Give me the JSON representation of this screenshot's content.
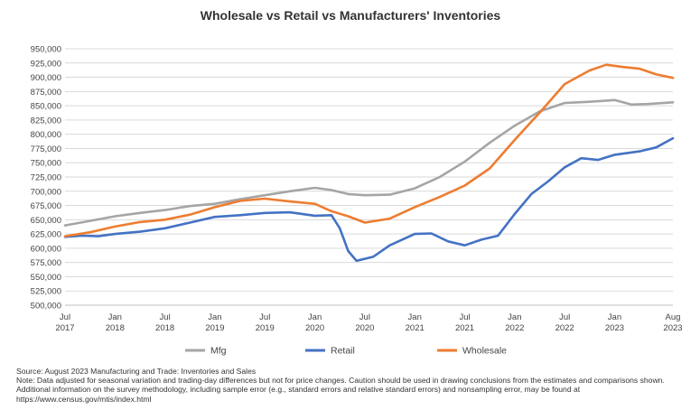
{
  "chart_data": {
    "type": "line",
    "title": "Wholesale vs Retail vs Manufacturers' Inventories",
    "y_range": [
      500000,
      950000
    ],
    "y_ticks": [
      "500,000",
      "525,000",
      "550,000",
      "575,000",
      "600,000",
      "625,000",
      "650,000",
      "675,000",
      "700,000",
      "725,000",
      "750,000",
      "775,000",
      "800,000",
      "825,000",
      "850,000",
      "875,000",
      "900,000",
      "925,000",
      "950,000"
    ],
    "x_range_months": [
      "2017-07",
      "2023-08"
    ],
    "x_ticks": [
      {
        "month": "Jul",
        "year": "2017",
        "date": "2017-07"
      },
      {
        "month": "Jan",
        "year": "2018",
        "date": "2018-01"
      },
      {
        "month": "Jul",
        "year": "2018",
        "date": "2018-07"
      },
      {
        "month": "Jan",
        "year": "2019",
        "date": "2019-01"
      },
      {
        "month": "Jul",
        "year": "2019",
        "date": "2019-07"
      },
      {
        "month": "Jan",
        "year": "2020",
        "date": "2020-01"
      },
      {
        "month": "Jul",
        "year": "2020",
        "date": "2020-07"
      },
      {
        "month": "Jan",
        "year": "2021",
        "date": "2021-01"
      },
      {
        "month": "Jul",
        "year": "2021",
        "date": "2021-07"
      },
      {
        "month": "Jan",
        "year": "2022",
        "date": "2022-01"
      },
      {
        "month": "Jul",
        "year": "2022",
        "date": "2022-07"
      },
      {
        "month": "Jan",
        "year": "2023",
        "date": "2023-01"
      },
      {
        "month": "Aug",
        "year": "2023",
        "date": "2023-08"
      }
    ],
    "grid": "horizontal",
    "legend_position": "bottom",
    "series": [
      {
        "name": "Mfg",
        "color": "#a5a5a5",
        "points": [
          [
            "2017-07",
            640000
          ],
          [
            "2017-10",
            648000
          ],
          [
            "2018-01",
            656000
          ],
          [
            "2018-04",
            662000
          ],
          [
            "2018-07",
            667000
          ],
          [
            "2018-10",
            674000
          ],
          [
            "2019-01",
            678000
          ],
          [
            "2019-04",
            686000
          ],
          [
            "2019-07",
            693000
          ],
          [
            "2019-10",
            700000
          ],
          [
            "2020-01",
            706000
          ],
          [
            "2020-03",
            702000
          ],
          [
            "2020-05",
            695000
          ],
          [
            "2020-07",
            693000
          ],
          [
            "2020-10",
            694000
          ],
          [
            "2021-01",
            705000
          ],
          [
            "2021-04",
            725000
          ],
          [
            "2021-07",
            752000
          ],
          [
            "2021-10",
            785000
          ],
          [
            "2022-01",
            815000
          ],
          [
            "2022-04",
            840000
          ],
          [
            "2022-07",
            855000
          ],
          [
            "2022-10",
            857000
          ],
          [
            "2023-01",
            860000
          ],
          [
            "2023-03",
            852000
          ],
          [
            "2023-05",
            853000
          ],
          [
            "2023-08",
            856000
          ]
        ]
      },
      {
        "name": "Retail",
        "color": "#4472c4",
        "points": [
          [
            "2017-07",
            620000
          ],
          [
            "2017-09",
            622000
          ],
          [
            "2017-11",
            621000
          ],
          [
            "2018-01",
            625000
          ],
          [
            "2018-04",
            629000
          ],
          [
            "2018-07",
            635000
          ],
          [
            "2018-10",
            645000
          ],
          [
            "2019-01",
            655000
          ],
          [
            "2019-04",
            658000
          ],
          [
            "2019-07",
            662000
          ],
          [
            "2019-10",
            663000
          ],
          [
            "2020-01",
            657000
          ],
          [
            "2020-03",
            658000
          ],
          [
            "2020-04",
            635000
          ],
          [
            "2020-05",
            595000
          ],
          [
            "2020-06",
            578000
          ],
          [
            "2020-08",
            585000
          ],
          [
            "2020-10",
            605000
          ],
          [
            "2021-01",
            625000
          ],
          [
            "2021-03",
            626000
          ],
          [
            "2021-05",
            612000
          ],
          [
            "2021-07",
            605000
          ],
          [
            "2021-09",
            615000
          ],
          [
            "2021-11",
            622000
          ],
          [
            "2022-01",
            660000
          ],
          [
            "2022-03",
            695000
          ],
          [
            "2022-05",
            717000
          ],
          [
            "2022-07",
            742000
          ],
          [
            "2022-09",
            758000
          ],
          [
            "2022-11",
            755000
          ],
          [
            "2023-01",
            764000
          ],
          [
            "2023-04",
            770000
          ],
          [
            "2023-06",
            777000
          ],
          [
            "2023-08",
            793000
          ]
        ]
      },
      {
        "name": "Wholesale",
        "color": "#ed7d31",
        "points": [
          [
            "2017-07",
            621000
          ],
          [
            "2017-10",
            628000
          ],
          [
            "2018-01",
            638000
          ],
          [
            "2018-04",
            646000
          ],
          [
            "2018-07",
            650000
          ],
          [
            "2018-10",
            659000
          ],
          [
            "2019-01",
            672000
          ],
          [
            "2019-04",
            683000
          ],
          [
            "2019-07",
            687000
          ],
          [
            "2019-10",
            682000
          ],
          [
            "2020-01",
            678000
          ],
          [
            "2020-03",
            665000
          ],
          [
            "2020-05",
            656000
          ],
          [
            "2020-07",
            645000
          ],
          [
            "2020-10",
            652000
          ],
          [
            "2021-01",
            672000
          ],
          [
            "2021-04",
            690000
          ],
          [
            "2021-07",
            710000
          ],
          [
            "2021-10",
            740000
          ],
          [
            "2022-01",
            790000
          ],
          [
            "2022-04",
            838000
          ],
          [
            "2022-07",
            888000
          ],
          [
            "2022-10",
            912000
          ],
          [
            "2022-12",
            922000
          ],
          [
            "2023-02",
            918000
          ],
          [
            "2023-04",
            915000
          ],
          [
            "2023-06",
            905000
          ],
          [
            "2023-08",
            899000
          ]
        ]
      }
    ]
  },
  "notes": {
    "source": "Source: August 2023 Manufacturing and Trade: Inventories and Sales",
    "note": "Note: Data adjusted for seasonal variation and trading-day differences but not for price changes. Caution should be used in drawing conclusions from the estimates and comparisons shown. Additional information on the survey methodology, including sample error (e.g., standard errors and relative standard errors) and nonsampling error, may be found at https://www.census.gov/mtis/index.html"
  }
}
